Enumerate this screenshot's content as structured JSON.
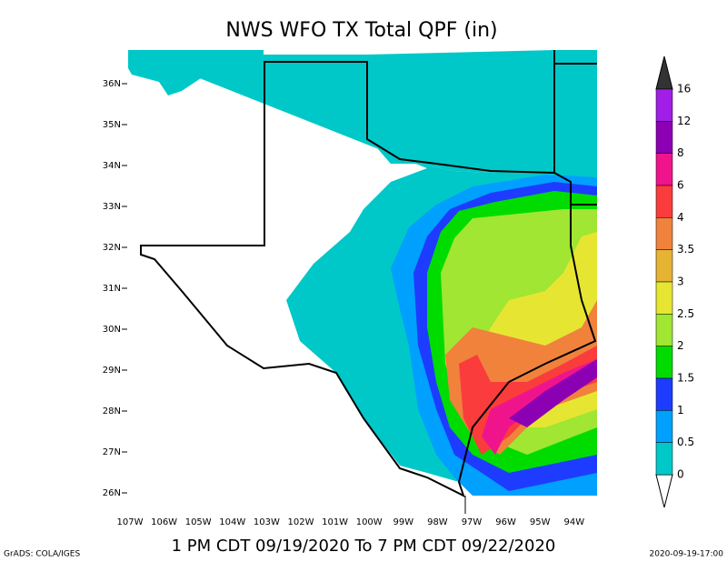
{
  "title": "NWS WFO TX Total QPF (in)",
  "lat_labels": [
    "36N",
    "35N",
    "34N",
    "33N",
    "32N",
    "31N",
    "30N",
    "29N",
    "28N",
    "27N",
    "26N"
  ],
  "lon_labels": [
    "107W",
    "106W",
    "105W",
    "104W",
    "103W",
    "102W",
    "101W",
    "100W",
    "99W",
    "98W",
    "97W",
    "96W",
    "95W",
    "94W"
  ],
  "colorbar": {
    "levels": [
      16,
      12,
      8,
      6,
      4,
      3.5,
      3,
      2.5,
      2,
      1.5,
      1,
      0.5,
      0
    ],
    "colors": [
      "#a01ee6",
      "#8c00b4",
      "#f0148c",
      "#fa3c3c",
      "#f0823c",
      "#e6b432",
      "#e6e632",
      "#a0e632",
      "#00dc00",
      "#1e3cff",
      "#00a0ff",
      "#00c8c8"
    ]
  },
  "subtitle": "1 PM CDT 09/19/2020 To 7 PM CDT 09/22/2020",
  "credit": "GrADS: COLA/IGES",
  "timestamp": "2020-09-19-17:00"
}
